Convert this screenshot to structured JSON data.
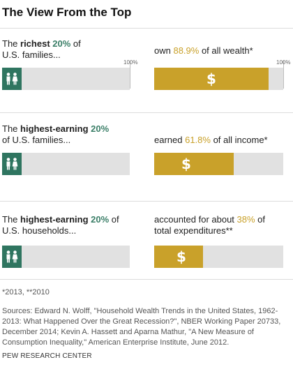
{
  "title": "The View From the Top",
  "tick_label": "100%",
  "colors": {
    "green": "#2f7560",
    "gold": "#c9a12a",
    "track": "#e1e1e1"
  },
  "chart_data": {
    "type": "bar",
    "unit": "%",
    "rows": [
      {
        "left_pre": "The ",
        "left_em": "richest",
        "left_pct": "20%",
        "left_post": " of",
        "left_line2": "U.S. families...",
        "right_pre": "own ",
        "right_pct": "88.9%",
        "right_post": " of all wealth*",
        "right_line2": "",
        "value": 88.9,
        "show_ticks": true
      },
      {
        "left_pre": "The ",
        "left_em": "highest-earning",
        "left_pct": "20%",
        "left_post": "",
        "left_line2": "of U.S. families...",
        "right_pre": "earned ",
        "right_pct": "61.8%",
        "right_post": " of all income*",
        "right_line2": "",
        "value": 61.8,
        "show_ticks": false
      },
      {
        "left_pre": "The ",
        "left_em": "highest-earning",
        "left_pct": "20%",
        "left_post": " of",
        "left_line2": "U.S. households...",
        "right_pre": "accounted for about ",
        "right_pct": "38%",
        "right_post": " of",
        "right_line2": "total expenditures**",
        "value": 38,
        "show_ticks": false
      }
    ]
  },
  "footnotes": {
    "notes": "*2013, **2010",
    "sources": "Sources: Edward N. Wolff, \"Household Wealth Trends in the United States, 1962-2013: What Happened Over the Great Recession?\", NBER Working Paper 20733, December 2014; Kevin A. Hassett and Aparna Mathur, \"A New Measure of Consumption Inequality,\" American Enterprise Institute, June 2012.",
    "org": "PEW RESEARCH CENTER"
  }
}
